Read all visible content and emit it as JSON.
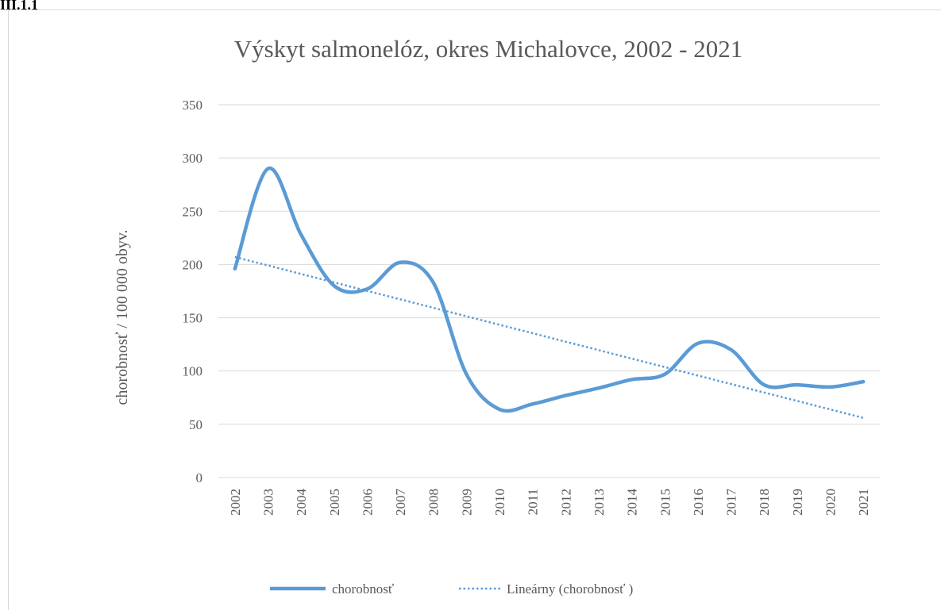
{
  "heading": "III.1.1",
  "chart_data": {
    "type": "line",
    "title": "Výskyt salmonelóz, okres Michalovce, 2002 - 2021",
    "y_label": "chorobnosť / 100 000 obyv.",
    "categories": [
      "2002",
      "2003",
      "2004",
      "2005",
      "2006",
      "2007",
      "2008",
      "2009",
      "2010",
      "2011",
      "2012",
      "2013",
      "2014",
      "2015",
      "2016",
      "2017",
      "2018",
      "2019",
      "2020",
      "2021"
    ],
    "series": [
      {
        "name": "chorobnosť",
        "color": "#5b9bd5",
        "style": "solid",
        "smooth": true,
        "values": [
          196,
          290,
          228,
          180,
          177,
          202,
          183,
          97,
          64,
          69,
          77,
          84,
          92,
          97,
          126,
          120,
          87,
          87,
          85,
          90
        ]
      },
      {
        "name": "Lineárny (chorobnosť )",
        "color": "#5b9bd5",
        "style": "dotted",
        "smooth": false,
        "values": [
          207,
          199.1,
          191.1,
          183.2,
          175.2,
          167.3,
          159.3,
          151.4,
          143.4,
          135.5,
          127.5,
          119.6,
          111.6,
          103.7,
          95.7,
          87.8,
          79.8,
          71.9,
          63.9,
          56
        ]
      }
    ],
    "ylim": [
      0,
      350
    ],
    "yticks": [
      0,
      50,
      100,
      150,
      200,
      250,
      300,
      350
    ],
    "grid": true,
    "legend": "bottom"
  }
}
